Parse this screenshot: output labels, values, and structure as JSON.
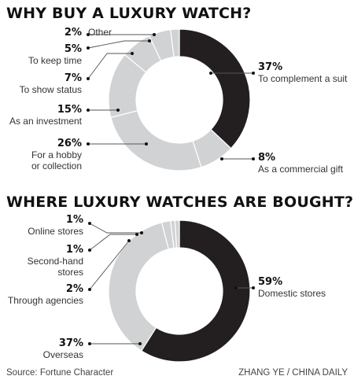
{
  "chart_data": [
    {
      "type": "pie",
      "title": "WHY BUY A LUXURY WATCH?",
      "unit": "%",
      "slices": [
        {
          "value": 37,
          "label": "37%",
          "name": "To complement a suit",
          "color": "#231f20"
        },
        {
          "value": 8,
          "label": "8%",
          "name": "As a commercial gift",
          "color": "#d1d2d3"
        },
        {
          "value": 26,
          "label": "26%",
          "name": "For a hobby or collection",
          "color": "#d1d2d3"
        },
        {
          "value": 15,
          "label": "15%",
          "name": "As an investment",
          "color": "#d1d2d3"
        },
        {
          "value": 7,
          "label": "7%",
          "name": "To show status",
          "color": "#d1d2d3"
        },
        {
          "value": 5,
          "label": "5%",
          "name": "To keep time",
          "color": "#d1d2d3"
        },
        {
          "value": 2,
          "label": "2%",
          "name": "Other",
          "color": "#d1d2d3"
        }
      ]
    },
    {
      "type": "pie",
      "title": "WHERE LUXURY WATCHES ARE BOUGHT?",
      "unit": "%",
      "slices": [
        {
          "value": 59,
          "label": "59%",
          "name": "Domestic stores",
          "color": "#231f20"
        },
        {
          "value": 37,
          "label": "37%",
          "name": "Overseas",
          "color": "#d1d2d3"
        },
        {
          "value": 2,
          "label": "2%",
          "name": "Through agencies",
          "color": "#d1d2d3"
        },
        {
          "value": 1,
          "label": "1%",
          "name": "Second-hand stores",
          "color": "#d1d2d3"
        },
        {
          "value": 1,
          "label": "1%",
          "name": "Online stores",
          "color": "#d1d2d3"
        }
      ]
    }
  ],
  "footer": {
    "source": "Source: Fortune Character",
    "credit": "ZHANG YE / CHINA DAILY"
  }
}
